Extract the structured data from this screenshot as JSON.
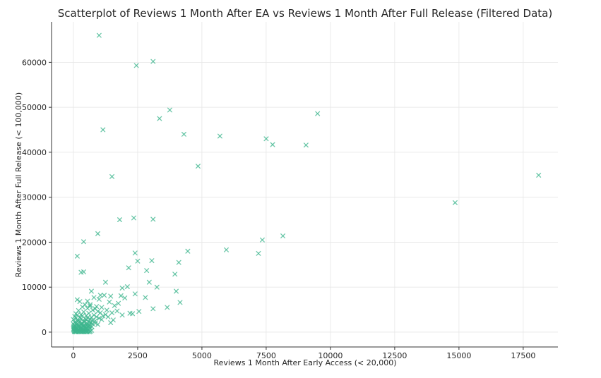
{
  "chart_data": {
    "type": "scatter",
    "title": "Scatterplot of Reviews 1 Month After EA vs Reviews 1 Month After Full Release (Filtered Data)",
    "xlabel": "Reviews 1 Month After Early Access (< 20,000)",
    "ylabel": "Reviews 1 Month After Full Release (< 100,000)",
    "xlim": [
      -850,
      18850
    ],
    "ylim": [
      -3300,
      69000
    ],
    "xticks": [
      0,
      2500,
      5000,
      7500,
      10000,
      12500,
      15000,
      17500
    ],
    "yticks": [
      0,
      10000,
      20000,
      30000,
      40000,
      50000,
      60000
    ],
    "xtick_labels": [
      "0",
      "2500",
      "5000",
      "7500",
      "10000",
      "12500",
      "15000",
      "17500"
    ],
    "ytick_labels": [
      "0",
      "10000",
      "20000",
      "30000",
      "40000",
      "50000",
      "60000"
    ],
    "grid": true,
    "marker": "x",
    "color": "#3db58d",
    "series": [
      {
        "x": [
          1000,
          2450,
          3100,
          3750,
          9500,
          3350,
          1150,
          4300,
          5700,
          7500,
          7750,
          9050,
          4850,
          1500,
          18100,
          14850,
          1800,
          2350,
          3100,
          950,
          400,
          8150,
          7350,
          7200,
          5950,
          4450,
          2400,
          150,
          2500,
          3050,
          4100,
          400,
          300,
          3950,
          2850,
          1250,
          2150,
          2950,
          3250,
          1900,
          2400,
          2100,
          2800,
          4000,
          1050,
          1200,
          1850,
          1450,
          4150,
          3650,
          2550,
          2300,
          3100,
          700,
          800,
          1000,
          1400,
          1600,
          1750,
          2000,
          550,
          650,
          900,
          1100,
          1300,
          1500,
          1700,
          2200,
          1900,
          1350,
          1550,
          1450,
          150,
          250,
          350,
          450,
          550,
          650,
          750,
          850,
          950,
          1050,
          1150,
          1250,
          100,
          200,
          300,
          400,
          500,
          600,
          700,
          800,
          900,
          1000,
          1100,
          50,
          150,
          250,
          350,
          450,
          550,
          650,
          750,
          850,
          0,
          100,
          200,
          300,
          400,
          500,
          600,
          700,
          50,
          150,
          250,
          350,
          450,
          550,
          650,
          750,
          850,
          950,
          0,
          100,
          200,
          300,
          400,
          500,
          600,
          30,
          120,
          220,
          320,
          420,
          520,
          620,
          720,
          10,
          80,
          180,
          280,
          380,
          480,
          580,
          20,
          60,
          140,
          240,
          340,
          440,
          540,
          640,
          5,
          40,
          90,
          160,
          260,
          360,
          460,
          560,
          15,
          70,
          130,
          190,
          290,
          390,
          490,
          25,
          110,
          210,
          310,
          410,
          510,
          610,
          710,
          35,
          95,
          175,
          275,
          375,
          475,
          45,
          85,
          165,
          265,
          365,
          465,
          565,
          665,
          55,
          105,
          205,
          305,
          405,
          505,
          65,
          125,
          225,
          325,
          425,
          525,
          625
        ],
        "y": [
          66000,
          59300,
          60200,
          49400,
          48600,
          47500,
          45000,
          44000,
          43600,
          43000,
          41700,
          41600,
          36900,
          34600,
          34900,
          28800,
          25000,
          25400,
          25100,
          21900,
          20100,
          21400,
          20500,
          17500,
          18300,
          18000,
          17600,
          16900,
          15800,
          15900,
          15500,
          13400,
          13300,
          12900,
          13700,
          11100,
          14300,
          11100,
          10000,
          9800,
          8500,
          10100,
          7700,
          9100,
          8200,
          8200,
          8100,
          8000,
          6600,
          5500,
          4600,
          4100,
          5200,
          9100,
          7700,
          7300,
          6700,
          5900,
          6400,
          7600,
          6900,
          6100,
          5700,
          5500,
          4900,
          4300,
          4700,
          4200,
          3800,
          3400,
          2700,
          2100,
          7200,
          6800,
          5600,
          6100,
          5300,
          5800,
          4900,
          5200,
          4600,
          4300,
          3600,
          3900,
          4100,
          4800,
          3900,
          4500,
          3700,
          4200,
          3300,
          3800,
          3400,
          3100,
          2800,
          3500,
          3800,
          3300,
          3600,
          3000,
          3200,
          2900,
          2700,
          2500,
          2800,
          3100,
          2600,
          2900,
          2400,
          2700,
          2300,
          2100,
          2200,
          2500,
          2300,
          2000,
          2400,
          1900,
          2100,
          1800,
          2000,
          1700,
          1800,
          2000,
          1700,
          1900,
          1600,
          1800,
          1500,
          1500,
          1700,
          1400,
          1600,
          1300,
          1500,
          1400,
          1200,
          1200,
          1400,
          1300,
          1100,
          1350,
          1000,
          1150,
          900,
          1100,
          1000,
          1200,
          900,
          1050,
          850,
          950,
          700,
          800,
          900,
          750,
          850,
          700,
          800,
          650,
          500,
          650,
          600,
          550,
          700,
          500,
          600,
          400,
          450,
          550,
          400,
          500,
          350,
          450,
          400,
          250,
          300,
          350,
          300,
          250,
          300,
          150,
          200,
          250,
          200,
          150,
          200,
          150,
          200,
          100,
          120,
          150,
          100,
          120,
          100,
          50,
          60,
          80,
          50,
          70,
          50,
          60
        ]
      }
    ]
  }
}
